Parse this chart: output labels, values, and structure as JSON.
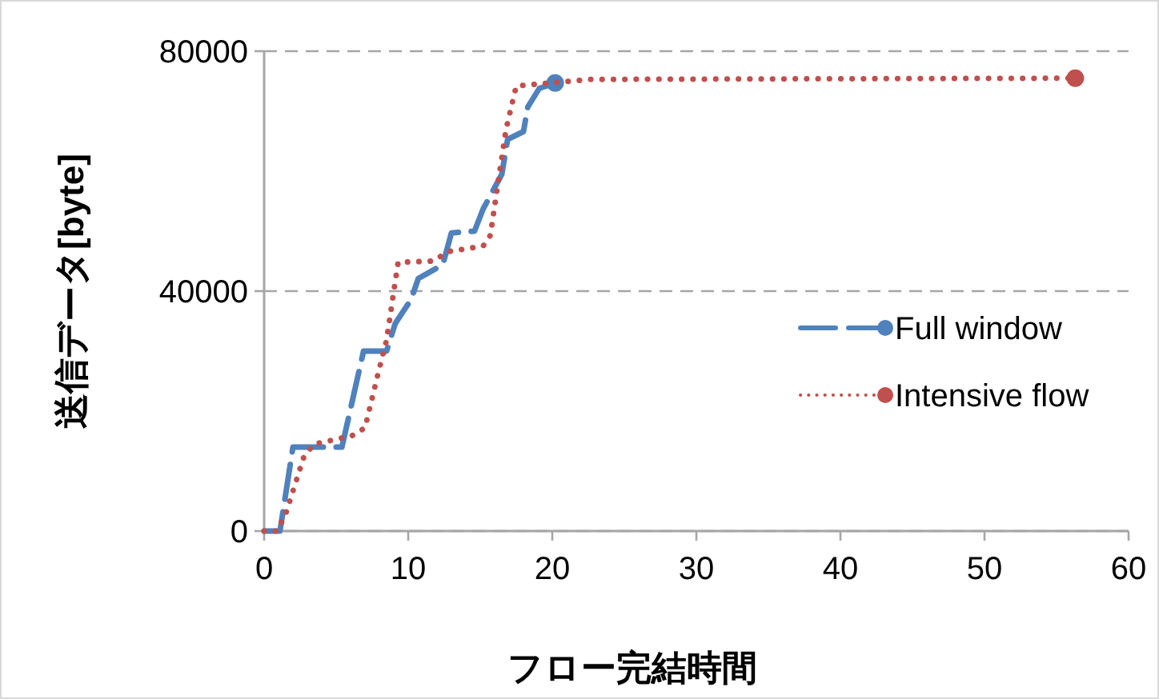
{
  "chart_data": {
    "type": "line",
    "xlabel": "フロー完結時間",
    "ylabel": "送信データ[byte]",
    "xlim": [
      0,
      60
    ],
    "xticks": [
      0,
      10,
      20,
      30,
      40,
      50,
      60
    ],
    "ylim": [
      0,
      80000
    ],
    "yticks": [
      0,
      40000,
      80000
    ],
    "grid": "y",
    "legend": "right",
    "series": [
      {
        "name": "Full window",
        "color": "#4f81bd",
        "line_style": "dashed",
        "x": [
          0,
          1.1,
          2.0,
          5.4,
          6.9,
          8.5,
          9.1,
          10.2,
          10.7,
          12.4,
          13.0,
          14.6,
          15.2,
          16.5,
          16.9,
          18.0,
          18.3,
          19.1,
          20.2
        ],
        "values": [
          0,
          0,
          14000,
          14000,
          30000,
          30000,
          34600,
          38600,
          42100,
          44400,
          49700,
          50000,
          53700,
          59500,
          65300,
          66600,
          70700,
          73800,
          74700
        ]
      },
      {
        "name": "Intensive flow",
        "color": "#c0504d",
        "line_style": "dotted",
        "x": [
          0,
          0.9,
          1.5,
          2.8,
          3.5,
          6.1,
          7.0,
          7.8,
          8.5,
          9.3,
          11.7,
          12.8,
          15.2,
          15.7,
          16.3,
          16.8,
          17.5,
          22.6,
          56.3
        ],
        "values": [
          0,
          0,
          2900,
          12700,
          14500,
          15900,
          17200,
          25200,
          31900,
          44800,
          45000,
          46600,
          47500,
          49300,
          59100,
          67100,
          74200,
          75300,
          75500
        ]
      }
    ]
  }
}
